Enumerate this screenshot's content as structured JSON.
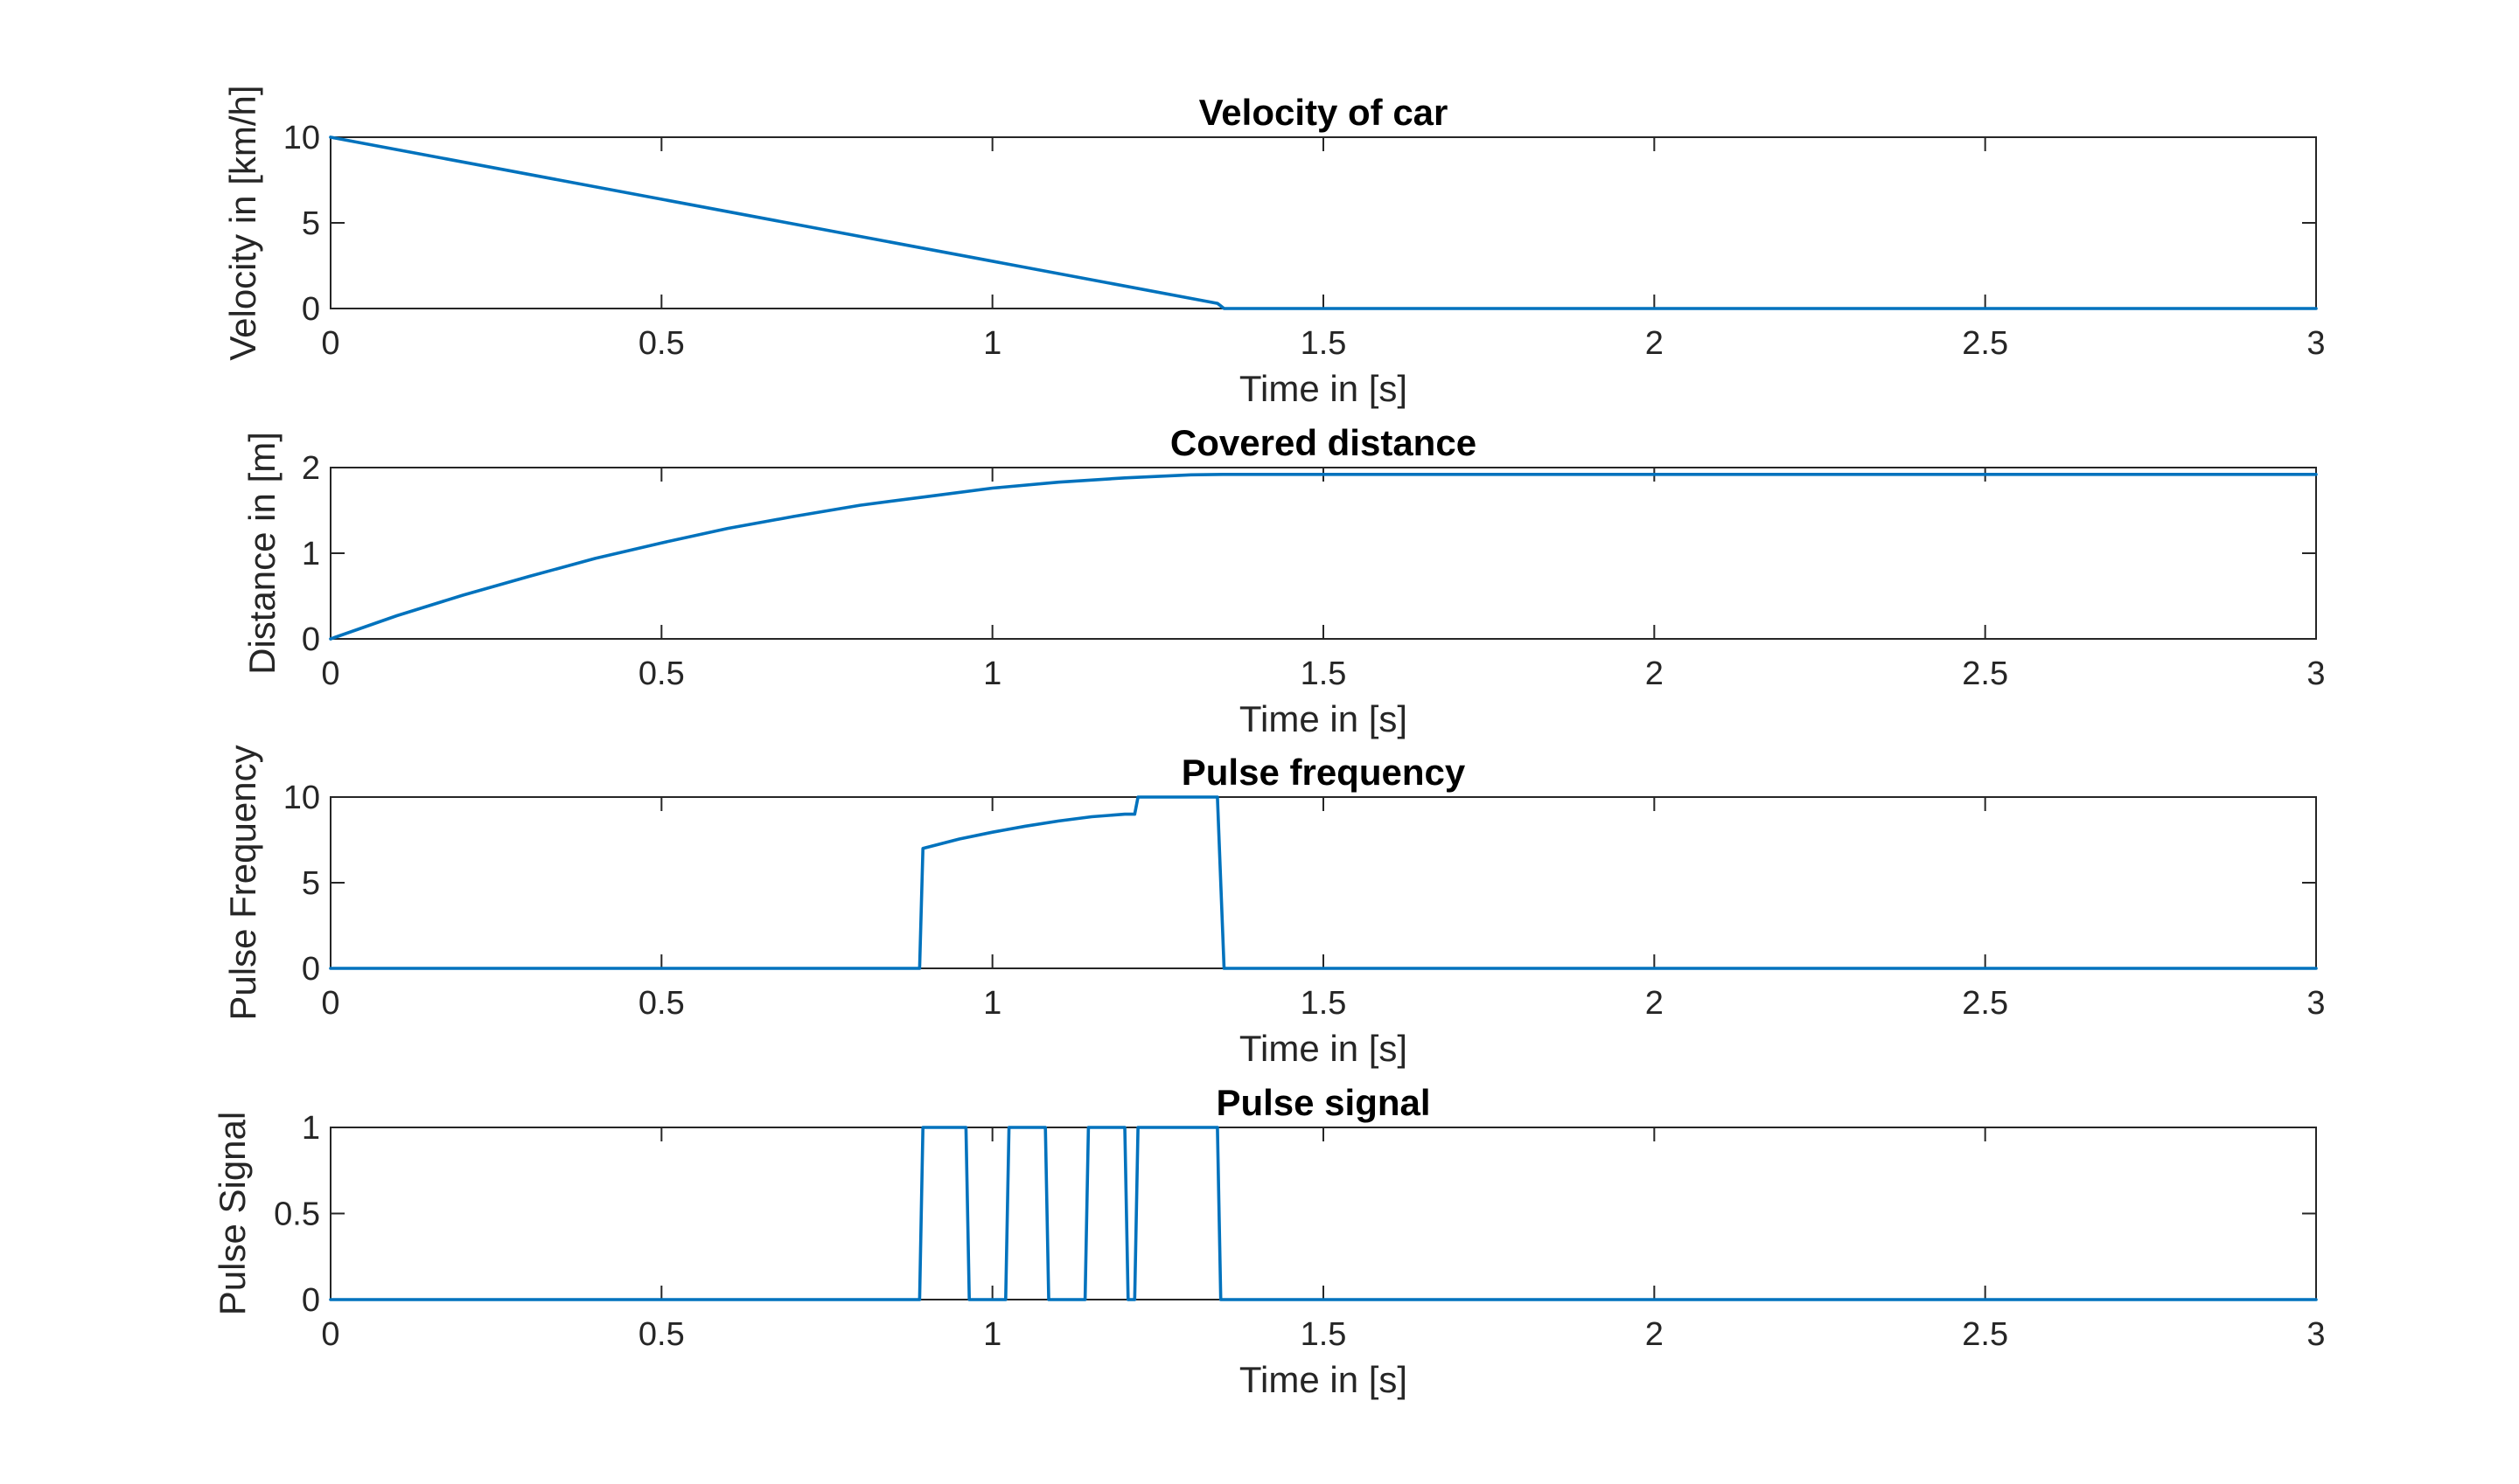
{
  "figure": {
    "line_color": "#0072BD",
    "axis_color": "#262626",
    "background": "#ffffff"
  },
  "chart_data": [
    {
      "type": "line",
      "title": "Velocity of car",
      "xlabel": "Time in [s]",
      "ylabel": "Velocity in [km/h]",
      "xlim": [
        0,
        3
      ],
      "ylim": [
        0,
        10
      ],
      "xticks": [
        0,
        0.5,
        1,
        1.5,
        2,
        2.5,
        3
      ],
      "xtick_labels": [
        "0",
        "0.5",
        "1",
        "1.5",
        "2",
        "2.5",
        "3"
      ],
      "yticks": [
        0,
        5,
        10
      ],
      "ytick_labels": [
        "0",
        "5",
        "10"
      ],
      "grid": false,
      "series": [
        {
          "x": [
            0,
            1.34,
            1.35,
            3
          ],
          "y": [
            10,
            0.3,
            0,
            0
          ]
        }
      ]
    },
    {
      "type": "line",
      "title": "Covered distance",
      "xlabel": "Time in [s]",
      "ylabel": "Distance in [m]",
      "xlim": [
        0,
        3
      ],
      "ylim": [
        0,
        2
      ],
      "xticks": [
        0,
        0.5,
        1,
        1.5,
        2,
        2.5,
        3
      ],
      "xtick_labels": [
        "0",
        "0.5",
        "1",
        "1.5",
        "2",
        "2.5",
        "3"
      ],
      "yticks": [
        0,
        1,
        2
      ],
      "ytick_labels": [
        "0",
        "1",
        "2"
      ],
      "grid": false,
      "series": [
        {
          "x": [
            0,
            0.1,
            0.2,
            0.3,
            0.4,
            0.5,
            0.6,
            0.7,
            0.8,
            0.9,
            1.0,
            1.1,
            1.2,
            1.3,
            1.35,
            2,
            2.5,
            3
          ],
          "y": [
            0,
            0.27,
            0.51,
            0.73,
            0.94,
            1.12,
            1.29,
            1.43,
            1.56,
            1.66,
            1.76,
            1.83,
            1.88,
            1.915,
            1.92,
            1.92,
            1.92,
            1.92
          ]
        }
      ]
    },
    {
      "type": "line",
      "title": "Pulse frequency",
      "xlabel": "Time in [s]",
      "ylabel": "Pulse Frequency",
      "xlim": [
        0,
        3
      ],
      "ylim": [
        0,
        10
      ],
      "xticks": [
        0,
        0.5,
        1,
        1.5,
        2,
        2.5,
        3
      ],
      "xtick_labels": [
        "0",
        "0.5",
        "1",
        "1.5",
        "2",
        "2.5",
        "3"
      ],
      "yticks": [
        0,
        5,
        10
      ],
      "ytick_labels": [
        "0",
        "5",
        "10"
      ],
      "grid": false,
      "series": [
        {
          "x": [
            0,
            0.89,
            0.895,
            0.95,
            1.0,
            1.05,
            1.1,
            1.15,
            1.2,
            1.215,
            1.22,
            1.34,
            1.35,
            3
          ],
          "y": [
            0,
            0,
            7.0,
            7.55,
            7.95,
            8.3,
            8.6,
            8.85,
            9.0,
            9.0,
            10,
            10,
            0,
            0
          ]
        }
      ]
    },
    {
      "type": "line",
      "title": "Pulse signal",
      "xlabel": "Time in [s]",
      "ylabel": "Pulse Signal",
      "xlim": [
        0,
        3
      ],
      "ylim": [
        0,
        1
      ],
      "xticks": [
        0,
        0.5,
        1,
        1.5,
        2,
        2.5,
        3
      ],
      "xtick_labels": [
        "0",
        "0.5",
        "1",
        "1.5",
        "2",
        "2.5",
        "3"
      ],
      "yticks": [
        0,
        0.5,
        1
      ],
      "ytick_labels": [
        "0",
        "0.5",
        "1"
      ],
      "grid": false,
      "series": [
        {
          "x": [
            0,
            0.89,
            0.895,
            0.96,
            0.965,
            1.02,
            1.025,
            1.08,
            1.085,
            1.14,
            1.145,
            1.2,
            1.205,
            1.215,
            1.22,
            1.34,
            1.345,
            3
          ],
          "y": [
            0,
            0,
            1,
            1,
            0,
            0,
            1,
            1,
            0,
            0,
            1,
            1,
            0,
            0,
            1,
            1,
            0,
            0
          ]
        }
      ]
    }
  ]
}
